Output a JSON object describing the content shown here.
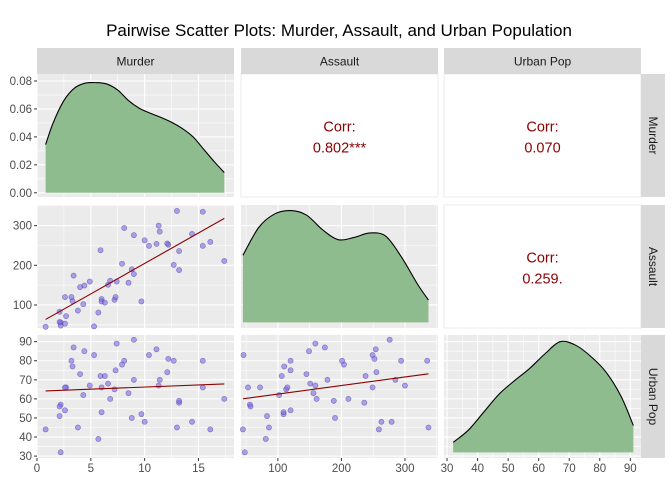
{
  "chart_data": {
    "type": "scatter",
    "title": "Pairwise Scatter Plots: Murder, Assault, and Urban Population",
    "variables": [
      "Murder",
      "Assault",
      "Urban Pop"
    ],
    "axes": {
      "Murder": {
        "range": [
          0,
          18.3
        ],
        "ticks": [
          0,
          5,
          10,
          15
        ],
        "tick_labels": [
          "0",
          "5",
          "10",
          "15"
        ]
      },
      "Assault": {
        "range": [
          42,
          352
        ],
        "ticks": [
          100,
          200,
          300
        ],
        "tick_labels": [
          "100",
          "200",
          "300"
        ]
      },
      "Urban Pop": {
        "range": [
          29,
          93.5
        ],
        "ticks": [
          30,
          40,
          50,
          60,
          70,
          80,
          90
        ],
        "tick_labels": [
          "30",
          "40",
          "50",
          "60",
          "70",
          "80",
          "90"
        ]
      }
    },
    "density_axis": {
      "range": [
        -0.003,
        0.085
      ],
      "ticks": [
        0.0,
        0.02,
        0.04,
        0.06,
        0.08
      ],
      "tick_labels": [
        "0.00",
        "0.02",
        "0.04",
        "0.06",
        "0.08"
      ]
    },
    "strips": {
      "top": [
        "Murder",
        "Assault",
        "Urban Pop"
      ],
      "right": [
        "Murder",
        "Assault",
        "Urban Pop"
      ]
    },
    "density": {
      "Murder": {
        "x": [
          0.8,
          1.5,
          2.5,
          3.5,
          4.5,
          5.5,
          6.5,
          7.5,
          8.5,
          9.5,
          10.5,
          11.5,
          12.5,
          13.5,
          14.5,
          15.5,
          16.5,
          17.4
        ],
        "y": [
          0.0345,
          0.05,
          0.066,
          0.075,
          0.0785,
          0.0788,
          0.0778,
          0.0735,
          0.066,
          0.0605,
          0.057,
          0.054,
          0.0505,
          0.046,
          0.04,
          0.031,
          0.022,
          0.0145
        ]
      },
      "Assault": {
        "x": [
          45,
          70,
          95,
          120,
          145,
          170,
          195,
          220,
          245,
          270,
          295,
          320,
          337
        ],
        "y": [
          0.6,
          0.85,
          0.97,
          1.0,
          0.96,
          0.83,
          0.74,
          0.76,
          0.8,
          0.77,
          0.58,
          0.34,
          0.2
        ]
      },
      "Urban Pop": {
        "x": [
          32,
          37,
          42,
          47,
          52,
          57,
          62,
          67,
          72,
          77,
          82,
          87,
          91
        ],
        "y": [
          0.09,
          0.2,
          0.36,
          0.52,
          0.64,
          0.75,
          0.88,
          0.99,
          0.96,
          0.86,
          0.72,
          0.5,
          0.24
        ]
      }
    },
    "points": {
      "Murder": [
        13.2,
        10.0,
        8.1,
        8.8,
        9.0,
        7.9,
        3.3,
        5.9,
        15.4,
        17.4,
        5.3,
        2.6,
        10.4,
        7.2,
        2.2,
        6.0,
        9.7,
        15.4,
        2.1,
        11.3,
        4.4,
        12.1,
        2.7,
        16.1,
        9.0,
        6.0,
        4.3,
        12.2,
        2.1,
        7.4,
        11.4,
        11.1,
        13.0,
        0.8,
        7.3,
        6.6,
        4.9,
        6.3,
        3.4,
        14.4,
        3.8,
        13.2,
        12.7,
        3.2,
        2.2,
        8.5,
        4.0,
        5.7,
        2.6,
        6.8
      ],
      "Assault": [
        236,
        263,
        294,
        190,
        276,
        204,
        110,
        238,
        335,
        211,
        46,
        120,
        249,
        113,
        56,
        115,
        109,
        249,
        83,
        300,
        149,
        255,
        72,
        259,
        178,
        109,
        102,
        252,
        57,
        159,
        285,
        254,
        337,
        45,
        120,
        151,
        159,
        106,
        174,
        279,
        86,
        188,
        201,
        120,
        48,
        156,
        145,
        81,
        53,
        161
      ],
      "Urban Pop": [
        58,
        48,
        80,
        50,
        91,
        78,
        77,
        72,
        80,
        60,
        83,
        54,
        83,
        65,
        57,
        66,
        52,
        66,
        51,
        67,
        85,
        74,
        66,
        44,
        70,
        53,
        62,
        81,
        56,
        89,
        70,
        86,
        45,
        44,
        75,
        68,
        67,
        72,
        87,
        48,
        45,
        59,
        80,
        80,
        32,
        63,
        73,
        39,
        66,
        60
      ]
    },
    "fits": {
      "Assault~Murder": {
        "intercept": 51.3,
        "slope": 15.34
      },
      "Urban Pop~Murder": {
        "intercept": 64.0,
        "slope": 0.22
      },
      "Urban Pop~Assault": {
        "intercept": 58.0,
        "slope": 0.045
      }
    },
    "correlations": [
      {
        "pair": "Murder-Assault",
        "label": "Corr:",
        "value": "0.802***"
      },
      {
        "pair": "Murder-Urban Pop",
        "label": "Corr:",
        "value": "0.070"
      },
      {
        "pair": "Assault-Urban Pop",
        "label": "Corr:",
        "value": "0.259."
      }
    ],
    "grid": true,
    "colors": {
      "panel_bg": "#ebebeb",
      "grid_major": "#ffffff",
      "strip_bg": "#d9d9d9",
      "density_fill": "#8fbc8f",
      "point_fill": "#7b68ee",
      "point_stroke": "#483d8b",
      "fit_line": "#8b0000",
      "corr_text": "#8b0000"
    }
  }
}
